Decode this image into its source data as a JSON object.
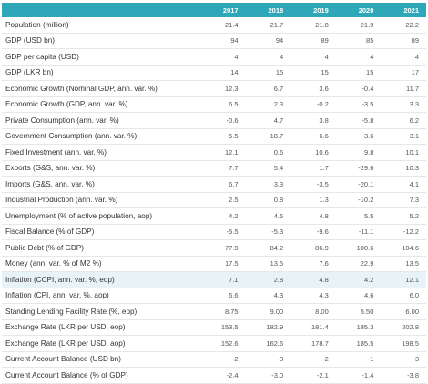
{
  "table": {
    "columns": [
      "2017",
      "2018",
      "2019",
      "2020",
      "2021"
    ],
    "rows": [
      [
        "Population (million)",
        "21.4",
        "21.7",
        "21.8",
        "21.9",
        "22.2"
      ],
      [
        "GDP (USD bn)",
        "94",
        "94",
        "89",
        "85",
        "89"
      ],
      [
        "GDP per capita (USD)",
        "4",
        "4",
        "4",
        "4",
        "4"
      ],
      [
        "GDP (LKR bn)",
        "14",
        "15",
        "15",
        "15",
        "17"
      ],
      [
        "Economic Growth (Nominal GDP, ann. var. %)",
        "12.3",
        "6.7",
        "3.6",
        "-0.4",
        "11.7"
      ],
      [
        "Economic Growth (GDP, ann. var. %)",
        "6.5",
        "2.3",
        "-0.2",
        "-3.5",
        "3.3"
      ],
      [
        "Private Consumption (ann. var. %)",
        "-0.6",
        "4.7",
        "3.8",
        "-5.8",
        "6.2"
      ],
      [
        "Government Consumption (ann. var. %)",
        "5.5",
        "18.7",
        "6.6",
        "3.6",
        "3.1"
      ],
      [
        "Fixed Investment (ann. var. %)",
        "12.1",
        "0.6",
        "10.6",
        "9.8",
        "10.1"
      ],
      [
        "Exports (G&S, ann. var. %)",
        "7.7",
        "5.4",
        "1.7",
        "-29.6",
        "10.3"
      ],
      [
        "Imports (G&S, ann. var. %)",
        "6.7",
        "3.3",
        "-3.5",
        "-20.1",
        "4.1"
      ],
      [
        "Industrial Production (ann. var. %)",
        "2.5",
        "0.8",
        "1.3",
        "-10.2",
        "7.3"
      ],
      [
        "Unemployment (% of active population, aop)",
        "4.2",
        "4.5",
        "4.8",
        "5.5",
        "5.2"
      ],
      [
        "Fiscal Balance (% of GDP)",
        "-5.5",
        "-5.3",
        "-9.6",
        "-11.1",
        "-12.2"
      ],
      [
        "Public Debt (% of GDP)",
        "77.9",
        "84.2",
        "86.9",
        "100.6",
        "104.6"
      ],
      [
        "Money (ann. var. % of M2 %)",
        "17.5",
        "13.5",
        "7.6",
        "22.9",
        "13.5"
      ],
      [
        "Inflation (CCPI, ann. var. %, eop)",
        "7.1",
        "2.8",
        "4.8",
        "4.2",
        "12.1"
      ],
      [
        "Inflation (CPI, ann. var. %, aop)",
        "6.6",
        "4.3",
        "4.3",
        "4.6",
        "6.0"
      ],
      [
        "Standing Lending Facility Rate (%, eop)",
        "8.75",
        "9.00",
        "8.00",
        "5.50",
        "6.00"
      ],
      [
        "Exchange Rate (LKR per USD, eop)",
        "153.5",
        "182.9",
        "181.4",
        "185.3",
        "202.8"
      ],
      [
        "Exchange Rate (LKR per USD, aop)",
        "152.6",
        "162.6",
        "178.7",
        "185.5",
        "198.5"
      ],
      [
        "Current Account Balance (USD bn)",
        "-2",
        "-3",
        "-2",
        "-1",
        "-3"
      ],
      [
        "Current Account Balance (% of GDP)",
        "-2.4",
        "-3.0",
        "-2.1",
        "-1.4",
        "-3.8"
      ]
    ]
  }
}
